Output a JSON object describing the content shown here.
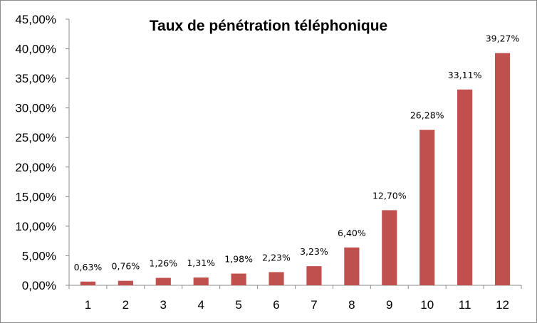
{
  "chart_data": {
    "type": "bar",
    "title": "Taux de pénétration téléphonique",
    "xlabel": "",
    "ylabel": "",
    "categories": [
      "1",
      "2",
      "3",
      "4",
      "5",
      "6",
      "7",
      "8",
      "9",
      "10",
      "11",
      "12"
    ],
    "values": [
      0.63,
      0.76,
      1.26,
      1.31,
      1.98,
      2.23,
      3.23,
      6.4,
      12.7,
      26.28,
      33.11,
      39.27
    ],
    "data_labels": [
      "0,63%",
      "0,76%",
      "1,26%",
      "1,31%",
      "1,98%",
      "2,23%",
      "3,23%",
      "6,40%",
      "12,70%",
      "26,28%",
      "33,11%",
      "39,27%"
    ],
    "ylim": [
      0,
      45
    ],
    "y_ticks": [
      0,
      5,
      10,
      15,
      20,
      25,
      30,
      35,
      40,
      45
    ],
    "y_tick_labels": [
      "0,00%",
      "5,00%",
      "10,00%",
      "15,00%",
      "20,00%",
      "25,00%",
      "30,00%",
      "35,00%",
      "40,00%",
      "45,00%"
    ],
    "grid": false,
    "legend": "none",
    "bar_color": "#C0504D"
  }
}
